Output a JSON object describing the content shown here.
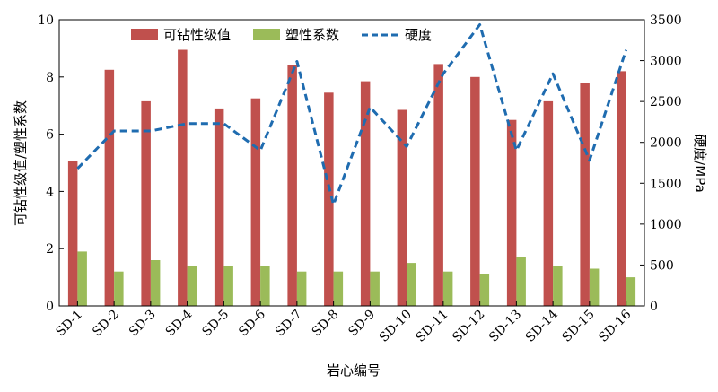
{
  "chart_data": {
    "type": "bar",
    "xlabel": "岩心编号",
    "ylabel_left": "可钻性级值/塑性系数",
    "ylabel_right": "硬度/MPa",
    "categories": [
      "SD-1",
      "SD-2",
      "SD-3",
      "SD-4",
      "SD-5",
      "SD-6",
      "SD-7",
      "SD-8",
      "SD-9",
      "SD-10",
      "SD-11",
      "SD-12",
      "SD-13",
      "SD-14",
      "SD-15",
      "SD-16"
    ],
    "ylim_left": [
      0,
      10
    ],
    "yticks_left": [
      0,
      2,
      4,
      6,
      8,
      10
    ],
    "ylim_right": [
      0,
      3500
    ],
    "yticks_right": [
      0,
      500,
      1000,
      1500,
      2000,
      2500,
      3000,
      3500
    ],
    "legend_position": "top-center",
    "grid": false,
    "series": [
      {
        "name": "可钻性级值",
        "type": "bar",
        "axis": "left",
        "color": "#c0504d",
        "values": [
          5.05,
          8.25,
          7.15,
          8.95,
          6.9,
          7.25,
          8.4,
          7.45,
          7.85,
          6.85,
          8.45,
          8.0,
          6.5,
          7.15,
          7.8,
          8.2
        ]
      },
      {
        "name": "塑性系数",
        "type": "bar",
        "axis": "left",
        "color": "#9bbb59",
        "values": [
          1.9,
          1.2,
          1.6,
          1.4,
          1.4,
          1.4,
          1.2,
          1.2,
          1.2,
          1.5,
          1.2,
          1.1,
          1.7,
          1.4,
          1.3,
          1.0
        ]
      },
      {
        "name": "硬度",
        "type": "line",
        "axis": "right",
        "color": "#1f6cb0",
        "dash": true,
        "values": [
          1680,
          2140,
          2140,
          2230,
          2230,
          1900,
          2990,
          1240,
          2430,
          1950,
          2840,
          3440,
          1900,
          2840,
          1780,
          3130
        ]
      }
    ]
  }
}
